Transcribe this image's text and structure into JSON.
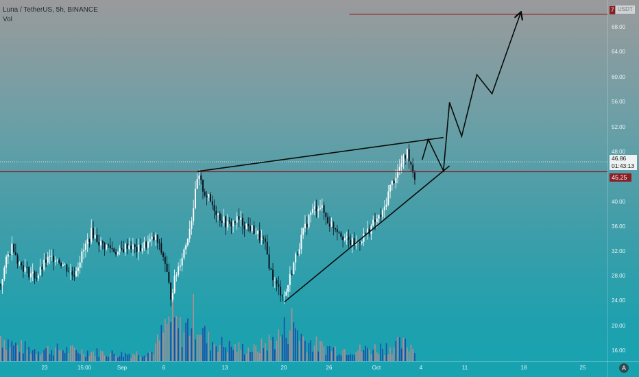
{
  "header": {
    "title": "Luna / TetherUS, 5h, BINANCE",
    "volume_label": "Vol"
  },
  "price_axis": {
    "unit_label": "USDT",
    "ticks": [
      "68.00",
      "64.00",
      "60.00",
      "56.00",
      "52.00",
      "48.00",
      "40.00",
      "36.00",
      "32.00",
      "28.00",
      "24.00",
      "20.00",
      "16.00"
    ],
    "last_price": "46.86",
    "countdown": "01:43:13",
    "level_price": "45.25",
    "target_tag": "7"
  },
  "time_axis": {
    "ticks": [
      "23",
      "15:00",
      "Sep",
      "6",
      "13",
      "20",
      "26",
      "Oct",
      "4",
      "11",
      "18",
      "25"
    ]
  },
  "colors": {
    "up": "#ffffff",
    "down": "#0b1220",
    "vol_up": "#c9898c",
    "vol_down": "#1f3fa8",
    "level": "#8b1f24",
    "drawing": "#0a0a0a",
    "last_line": "#ffffff"
  },
  "auto_button": "A",
  "chart_data": {
    "type": "candlestick",
    "symbol": "Luna / TetherUS",
    "interval": "5h",
    "exchange": "BINANCE",
    "ylim": [
      14.5,
      72
    ],
    "x_ticks": [
      "23",
      "15:00",
      "Sep",
      "6",
      "13",
      "20",
      "26",
      "Oct",
      "4",
      "11",
      "18",
      "25"
    ],
    "horizontal_levels": [
      45.25,
      70.8
    ],
    "last_price": 46.86,
    "trend_lines": [
      {
        "name": "upper",
        "from": [
          0.325,
          45.3
        ],
        "to": [
          0.73,
          50.8
        ]
      },
      {
        "name": "lower",
        "from": [
          0.468,
          24.1
        ],
        "to": [
          0.74,
          46.2
        ]
      }
    ],
    "projection_path": [
      [
        0.695,
        47.2
      ],
      [
        0.705,
        50.5
      ],
      [
        0.73,
        45.4
      ],
      [
        0.74,
        56.5
      ],
      [
        0.76,
        51.0
      ],
      [
        0.785,
        61.0
      ],
      [
        0.81,
        57.9
      ],
      [
        0.857,
        71.0
      ]
    ],
    "price_path": [
      [
        0.0,
        27.0
      ],
      [
        0.01,
        31.0
      ],
      [
        0.02,
        33.5
      ],
      [
        0.03,
        30.5
      ],
      [
        0.045,
        29.0
      ],
      [
        0.06,
        28.2
      ],
      [
        0.075,
        30.8
      ],
      [
        0.09,
        31.5
      ],
      [
        0.105,
        30.0
      ],
      [
        0.12,
        28.5
      ],
      [
        0.135,
        32.0
      ],
      [
        0.15,
        35.5
      ],
      [
        0.165,
        33.5
      ],
      [
        0.18,
        33.0
      ],
      [
        0.195,
        32.0
      ],
      [
        0.21,
        33.5
      ],
      [
        0.225,
        32.5
      ],
      [
        0.24,
        33.5
      ],
      [
        0.255,
        34.5
      ],
      [
        0.27,
        31.0
      ],
      [
        0.28,
        25.0
      ],
      [
        0.29,
        29.0
      ],
      [
        0.305,
        33.5
      ],
      [
        0.315,
        38.0
      ],
      [
        0.325,
        44.5
      ],
      [
        0.335,
        42.0
      ],
      [
        0.345,
        40.5
      ],
      [
        0.36,
        38.0
      ],
      [
        0.375,
        36.5
      ],
      [
        0.39,
        37.5
      ],
      [
        0.405,
        36.5
      ],
      [
        0.42,
        35.5
      ],
      [
        0.435,
        33.5
      ],
      [
        0.445,
        29.0
      ],
      [
        0.455,
        26.5
      ],
      [
        0.468,
        25.0
      ],
      [
        0.48,
        29.5
      ],
      [
        0.495,
        34.5
      ],
      [
        0.51,
        38.5
      ],
      [
        0.525,
        40.0
      ],
      [
        0.54,
        37.0
      ],
      [
        0.555,
        36.0
      ],
      [
        0.57,
        34.0
      ],
      [
        0.585,
        33.5
      ],
      [
        0.6,
        35.0
      ],
      [
        0.615,
        37.0
      ],
      [
        0.63,
        38.5
      ],
      [
        0.64,
        42.5
      ],
      [
        0.65,
        44.5
      ],
      [
        0.66,
        46.5
      ],
      [
        0.67,
        48.5
      ],
      [
        0.68,
        45.0
      ],
      [
        0.69,
        42.5
      ],
      [
        0.7,
        44.5
      ],
      [
        0.71,
        47.3
      ]
    ],
    "volume_path": [
      [
        0.0,
        0.55
      ],
      [
        0.02,
        0.35
      ],
      [
        0.05,
        0.25
      ],
      [
        0.1,
        0.25
      ],
      [
        0.15,
        0.2
      ],
      [
        0.2,
        0.15
      ],
      [
        0.25,
        0.2
      ],
      [
        0.28,
        0.9
      ],
      [
        0.3,
        0.6
      ],
      [
        0.32,
        1.0
      ],
      [
        0.34,
        0.45
      ],
      [
        0.38,
        0.3
      ],
      [
        0.42,
        0.25
      ],
      [
        0.46,
        0.55
      ],
      [
        0.48,
        0.85
      ],
      [
        0.5,
        0.45
      ],
      [
        0.53,
        0.3
      ],
      [
        0.56,
        0.25
      ],
      [
        0.6,
        0.25
      ],
      [
        0.63,
        0.3
      ],
      [
        0.66,
        0.35
      ],
      [
        0.7,
        0.3
      ],
      [
        0.72,
        0.25
      ]
    ]
  }
}
